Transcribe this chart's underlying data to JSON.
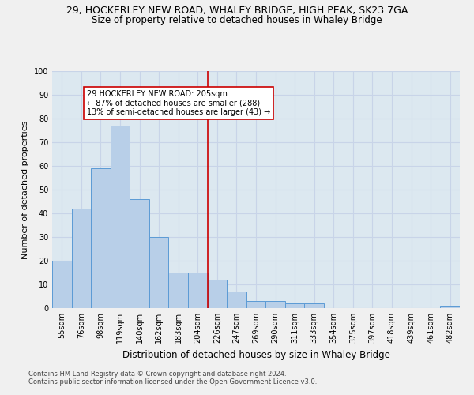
{
  "title": "29, HOCKERLEY NEW ROAD, WHALEY BRIDGE, HIGH PEAK, SK23 7GA",
  "subtitle": "Size of property relative to detached houses in Whaley Bridge",
  "xlabel": "Distribution of detached houses by size in Whaley Bridge",
  "ylabel": "Number of detached properties",
  "categories": [
    "55sqm",
    "76sqm",
    "98sqm",
    "119sqm",
    "140sqm",
    "162sqm",
    "183sqm",
    "204sqm",
    "226sqm",
    "247sqm",
    "269sqm",
    "290sqm",
    "311sqm",
    "333sqm",
    "354sqm",
    "375sqm",
    "397sqm",
    "418sqm",
    "439sqm",
    "461sqm",
    "482sqm"
  ],
  "values": [
    20,
    42,
    59,
    77,
    46,
    30,
    15,
    15,
    12,
    7,
    3,
    3,
    2,
    2,
    0,
    0,
    0,
    0,
    0,
    0,
    1
  ],
  "bar_color": "#b8cfe8",
  "bar_edge_color": "#5b9bd5",
  "property_line_x": 7.5,
  "annotation_text": "29 HOCKERLEY NEW ROAD: 205sqm\n← 87% of detached houses are smaller (288)\n13% of semi-detached houses are larger (43) →",
  "annotation_box_color": "#ffffff",
  "annotation_box_edge": "#cc0000",
  "vline_color": "#cc0000",
  "ylim": [
    0,
    100
  ],
  "yticks": [
    0,
    10,
    20,
    30,
    40,
    50,
    60,
    70,
    80,
    90,
    100
  ],
  "grid_color": "#c8d4e8",
  "bg_color": "#dce8f0",
  "fig_bg_color": "#f0f0f0",
  "footer_line1": "Contains HM Land Registry data © Crown copyright and database right 2024.",
  "footer_line2": "Contains public sector information licensed under the Open Government Licence v3.0.",
  "title_fontsize": 9,
  "subtitle_fontsize": 8.5,
  "xlabel_fontsize": 8.5,
  "ylabel_fontsize": 8,
  "tick_fontsize": 7,
  "annotation_fontsize": 7,
  "footer_fontsize": 6
}
